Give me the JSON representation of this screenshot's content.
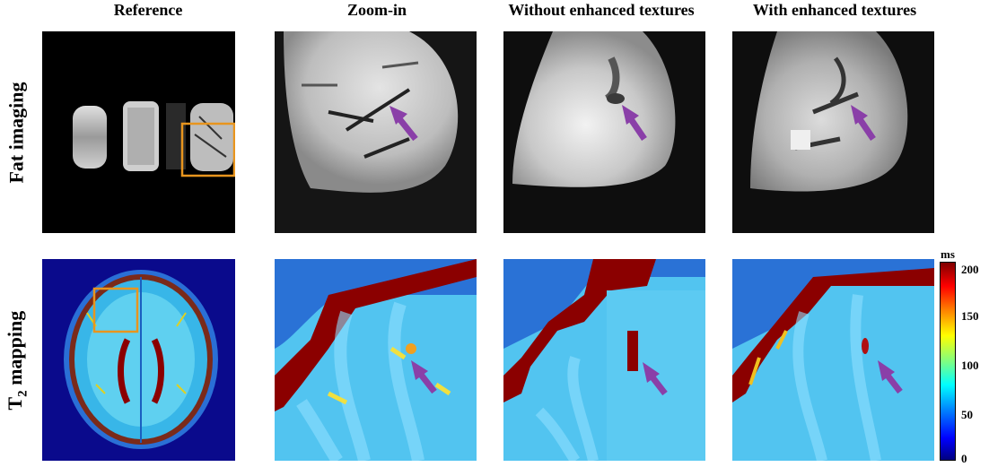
{
  "columns": [
    "Reference",
    "Zoom-in",
    "Without enhanced textures",
    "With enhanced textures"
  ],
  "rows": {
    "fat": "Fat imaging",
    "t2_main": "T",
    "t2_sub": "2",
    "t2_rest": " mapping"
  },
  "colorbar": {
    "unit": "ms",
    "ticks": [
      "200",
      "150",
      "100",
      "50",
      "0"
    ],
    "range": [
      0,
      210
    ]
  },
  "colors": {
    "highlight_box": "#e8951e",
    "arrow": "#8a3fa8",
    "background": "#000000"
  }
}
